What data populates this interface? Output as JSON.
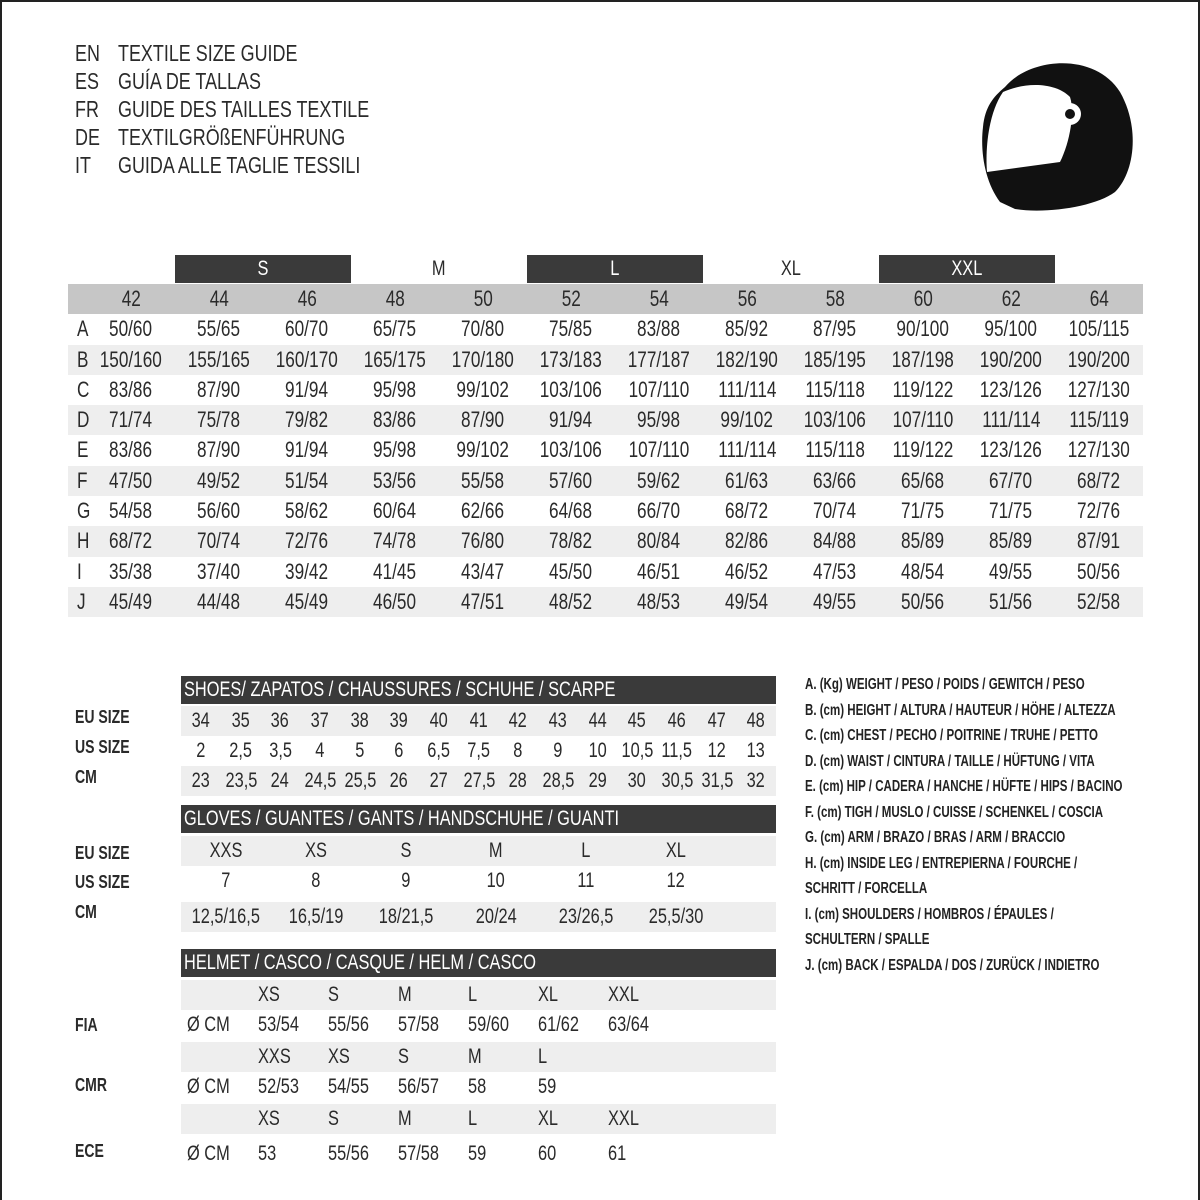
{
  "titles": [
    {
      "code": "EN",
      "text": "TEXTILE SIZE GUIDE"
    },
    {
      "code": "ES",
      "text": "GUÍA DE TALLAS"
    },
    {
      "code": "FR",
      "text": "GUIDE DES TAILLES TEXTILE"
    },
    {
      "code": "DE",
      "text": "TEXTILGRÖßENFÜHRUNG"
    },
    {
      "code": "IT",
      "text": "GUIDA ALLE TAGLIE TESSILI"
    }
  ],
  "icon": "helmet-icon",
  "colors": {
    "dark_bar": "#3a3a3a",
    "header_gray": "#c6c6c6",
    "stripe": "#eeeeee"
  },
  "textile": {
    "bands": [
      {
        "label": "S",
        "dark": true
      },
      {
        "label": "M",
        "dark": false
      },
      {
        "label": "L",
        "dark": true
      },
      {
        "label": "XL",
        "dark": false
      },
      {
        "label": "XXL",
        "dark": true
      }
    ],
    "sizes": [
      "42",
      "44",
      "46",
      "48",
      "50",
      "52",
      "54",
      "56",
      "58",
      "60",
      "62",
      "64"
    ],
    "rows": [
      {
        "key": "A",
        "values": [
          "50/60",
          "55/65",
          "60/70",
          "65/75",
          "70/80",
          "75/85",
          "83/88",
          "85/92",
          "87/95",
          "90/100",
          "95/100",
          "105/115"
        ]
      },
      {
        "key": "B",
        "values": [
          "150/160",
          "155/165",
          "160/170",
          "165/175",
          "170/180",
          "173/183",
          "177/187",
          "182/190",
          "185/195",
          "187/198",
          "190/200",
          "190/200"
        ]
      },
      {
        "key": "C",
        "values": [
          "83/86",
          "87/90",
          "91/94",
          "95/98",
          "99/102",
          "103/106",
          "107/110",
          "111/114",
          "115/118",
          "119/122",
          "123/126",
          "127/130"
        ]
      },
      {
        "key": "D",
        "values": [
          "71/74",
          "75/78",
          "79/82",
          "83/86",
          "87/90",
          "91/94",
          "95/98",
          "99/102",
          "103/106",
          "107/110",
          "111/114",
          "115/119"
        ]
      },
      {
        "key": "E",
        "values": [
          "83/86",
          "87/90",
          "91/94",
          "95/98",
          "99/102",
          "103/106",
          "107/110",
          "111/114",
          "115/118",
          "119/122",
          "123/126",
          "127/130"
        ]
      },
      {
        "key": "F",
        "values": [
          "47/50",
          "49/52",
          "51/54",
          "53/56",
          "55/58",
          "57/60",
          "59/62",
          "61/63",
          "63/66",
          "65/68",
          "67/70",
          "68/72"
        ]
      },
      {
        "key": "G",
        "values": [
          "54/58",
          "56/60",
          "58/62",
          "60/64",
          "62/66",
          "64/68",
          "66/70",
          "68/72",
          "70/74",
          "71/75",
          "71/75",
          "72/76"
        ]
      },
      {
        "key": "H",
        "values": [
          "68/72",
          "70/74",
          "72/76",
          "74/78",
          "76/80",
          "78/82",
          "80/84",
          "82/86",
          "84/88",
          "85/89",
          "85/89",
          "87/91"
        ]
      },
      {
        "key": "I",
        "values": [
          "35/38",
          "37/40",
          "39/42",
          "41/45",
          "43/47",
          "45/50",
          "46/51",
          "46/52",
          "47/53",
          "48/54",
          "49/55",
          "50/56"
        ]
      },
      {
        "key": "J",
        "values": [
          "45/49",
          "44/48",
          "45/49",
          "46/50",
          "47/51",
          "48/52",
          "48/53",
          "49/54",
          "49/55",
          "50/56",
          "51/56",
          "52/58"
        ]
      }
    ]
  },
  "shoes": {
    "title": "SHOES/ ZAPATOS / CHAUSSURES / SCHUHE / SCARPE",
    "rows": [
      {
        "label": "EU SIZE",
        "values": [
          "34",
          "35",
          "36",
          "37",
          "38",
          "39",
          "40",
          "41",
          "42",
          "43",
          "44",
          "45",
          "46",
          "47",
          "48"
        ]
      },
      {
        "label": "US SIZE",
        "values": [
          "2",
          "2,5",
          "3,5",
          "4",
          "5",
          "6",
          "6,5",
          "7,5",
          "8",
          "9",
          "10",
          "10,5",
          "11,5",
          "12",
          "13"
        ]
      },
      {
        "label": "CM",
        "values": [
          "23",
          "23,5",
          "24",
          "24,5",
          "25,5",
          "26",
          "27",
          "27,5",
          "28",
          "28,5",
          "29",
          "30",
          "30,5",
          "31,5",
          "32"
        ]
      }
    ]
  },
  "gloves": {
    "title": "GLOVES / GUANTES / GANTS / HANDSCHUHE / GUANTI",
    "rows": [
      {
        "label": "EU SIZE",
        "values": [
          "XXS",
          "XS",
          "S",
          "M",
          "L",
          "XL"
        ]
      },
      {
        "label": "US SIZE",
        "values": [
          "7",
          "8",
          "9",
          "10",
          "11",
          "12"
        ]
      },
      {
        "label": "CM",
        "values": [
          "12,5/16,5",
          "16,5/19",
          "18/21,5",
          "20/24",
          "23/26,5",
          "25,5/30"
        ]
      }
    ]
  },
  "helmet": {
    "title": "HELMET / CASCO / CASQUE / HELM / CASCO",
    "unit": "Ø CM",
    "groups": [
      {
        "label": "FIA",
        "sizes": [
          "XS",
          "S",
          "M",
          "L",
          "XL",
          "XXL"
        ],
        "values": [
          "53/54",
          "55/56",
          "57/58",
          "59/60",
          "61/62",
          "63/64"
        ]
      },
      {
        "label": "CMR",
        "sizes": [
          "XXS",
          "XS",
          "S",
          "M",
          "L"
        ],
        "values": [
          "52/53",
          "54/55",
          "56/57",
          "58",
          "59"
        ]
      },
      {
        "label": "ECE",
        "sizes": [
          "XS",
          "S",
          "M",
          "L",
          "XL",
          "XXL"
        ],
        "values": [
          "53",
          "55/56",
          "57/58",
          "59",
          "60",
          "61"
        ]
      }
    ]
  },
  "legend": [
    "A. (Kg) WEIGHT / PESO / POIDS / GEWITCH / PESO",
    "B. (cm) HEIGHT / ALTURA / HAUTEUR / HÖHE / ALTEZZA",
    "C. (cm) CHEST / PECHO / POITRINE / TRUHE / PETTO",
    "D. (cm) WAIST / CINTURA / TAILLE / HÜFTUNG / VITA",
    "E. (cm) HIP / CADERA / HANCHE / HÜFTE / HIPS /  BACINO",
    "F.  (cm) TIGH / MUSLO / CUISSE / SCHENKEL / COSCIA",
    "G. (cm) ARM  / BRAZO / BRAS / ARM / BRACCIO",
    "H. (cm) INSIDE LEG / ENTREPIERNA / FOURCHE /",
    "SCHRITT / FORCELLA",
    "I.  (cm) SHOULDERS / HOMBROS / ÉPAULES /",
    "SCHULTERN / SPALLE",
    "J. (cm) BACK / ESPALDA / DOS / ZURÜCK / INDIETRO"
  ]
}
